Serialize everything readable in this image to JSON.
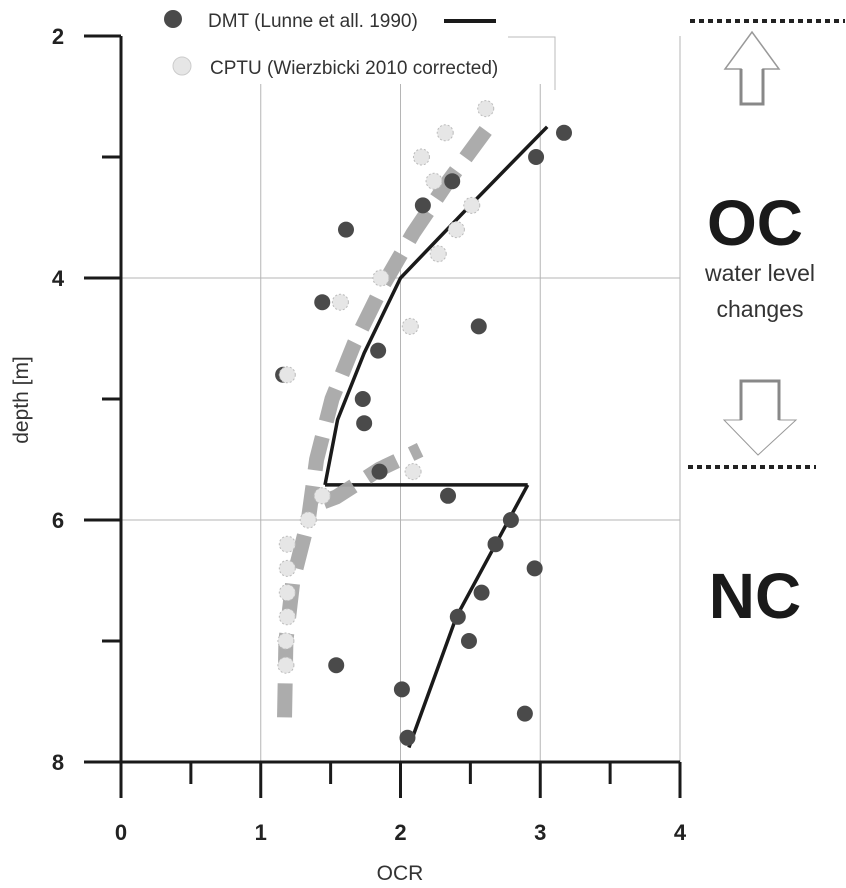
{
  "chart_data": {
    "type": "scatter",
    "xlabel": "OCR",
    "ylabel": "depth [m]",
    "xlim": [
      0,
      4
    ],
    "ylim": [
      2,
      8
    ],
    "y_inverted": true,
    "x_ticks": [
      "0",
      "1",
      "2",
      "3",
      "4"
    ],
    "y_ticks": [
      "2",
      "4",
      "6",
      "8"
    ],
    "grid": true,
    "legend_position": "top",
    "series": [
      {
        "name": "DMT (Lunne et all. 1990)",
        "marker": "dark-filled-circle",
        "color": "#4a4a4a",
        "points": [
          [
            3.17,
            2.8
          ],
          [
            2.97,
            3.0
          ],
          [
            2.37,
            3.2
          ],
          [
            2.16,
            3.4
          ],
          [
            1.61,
            3.6
          ],
          [
            1.44,
            4.2
          ],
          [
            2.56,
            4.4
          ],
          [
            1.84,
            4.6
          ],
          [
            1.16,
            4.8
          ],
          [
            1.73,
            5.0
          ],
          [
            1.74,
            5.2
          ],
          [
            1.85,
            5.6
          ],
          [
            2.34,
            5.8
          ],
          [
            2.79,
            6.0
          ],
          [
            2.68,
            6.2
          ],
          [
            2.96,
            6.4
          ],
          [
            2.58,
            6.6
          ],
          [
            2.41,
            6.8
          ],
          [
            2.49,
            7.0
          ],
          [
            1.54,
            7.2
          ],
          [
            2.01,
            7.4
          ],
          [
            2.89,
            7.6
          ],
          [
            2.05,
            7.8
          ]
        ]
      },
      {
        "name": "CPTU (Wierzbicki 2010 corrected)",
        "marker": "light-filled-circle",
        "color": "#e6e6e6",
        "points": [
          [
            2.61,
            2.6
          ],
          [
            2.32,
            2.8
          ],
          [
            2.15,
            3.0
          ],
          [
            2.24,
            3.2
          ],
          [
            2.51,
            3.4
          ],
          [
            2.4,
            3.6
          ],
          [
            2.27,
            3.8
          ],
          [
            1.86,
            4.0
          ],
          [
            1.57,
            4.2
          ],
          [
            2.07,
            4.4
          ],
          [
            1.19,
            4.8
          ],
          [
            2.09,
            5.6
          ],
          [
            1.44,
            5.8
          ],
          [
            1.34,
            6.0
          ],
          [
            1.19,
            6.2
          ],
          [
            1.19,
            6.4
          ],
          [
            1.19,
            6.6
          ],
          [
            1.19,
            6.8
          ],
          [
            1.18,
            7.0
          ],
          [
            1.18,
            7.2
          ]
        ]
      }
    ],
    "trend_lines": [
      {
        "series": "DMT (Lunne et all. 1990)",
        "style": "solid",
        "color": "#1a1a1a",
        "segments": [
          [
            [
              3.05,
              2.75
            ],
            [
              2.49,
              3.41
            ],
            [
              2.0,
              4.0
            ],
            [
              1.74,
              4.62
            ],
            [
              1.55,
              5.17
            ],
            [
              1.46,
              5.71
            ]
          ],
          [
            [
              1.46,
              5.71
            ],
            [
              2.91,
              5.71
            ]
          ],
          [
            [
              2.91,
              5.71
            ],
            [
              2.4,
              6.8
            ],
            [
              2.06,
              7.88
            ]
          ]
        ]
      },
      {
        "style": "dashed",
        "color": "#a8a8a8",
        "segments": [
          [
            [
              2.61,
              2.78
            ],
            [
              2.33,
              3.22
            ],
            [
              2.09,
              3.63
            ],
            [
              1.87,
              4.07
            ],
            [
              1.67,
              4.54
            ],
            [
              1.51,
              5.0
            ],
            [
              1.4,
              5.5
            ],
            [
              1.34,
              6.0
            ],
            [
              1.23,
              6.5
            ],
            [
              1.18,
              7.0
            ],
            [
              1.17,
              7.65
            ]
          ],
          [
            [
              1.45,
              5.85
            ],
            [
              1.54,
              5.81
            ],
            [
              1.85,
              5.58
            ],
            [
              2.14,
              5.42
            ]
          ]
        ]
      }
    ]
  },
  "annotations": {
    "upper_zone": "OC",
    "upper_note_line1": "water level",
    "upper_note_line2": "changes",
    "lower_zone": "NC",
    "up_arrow_icon": "arrow-up-icon",
    "down_arrow_icon": "arrow-down-icon"
  }
}
